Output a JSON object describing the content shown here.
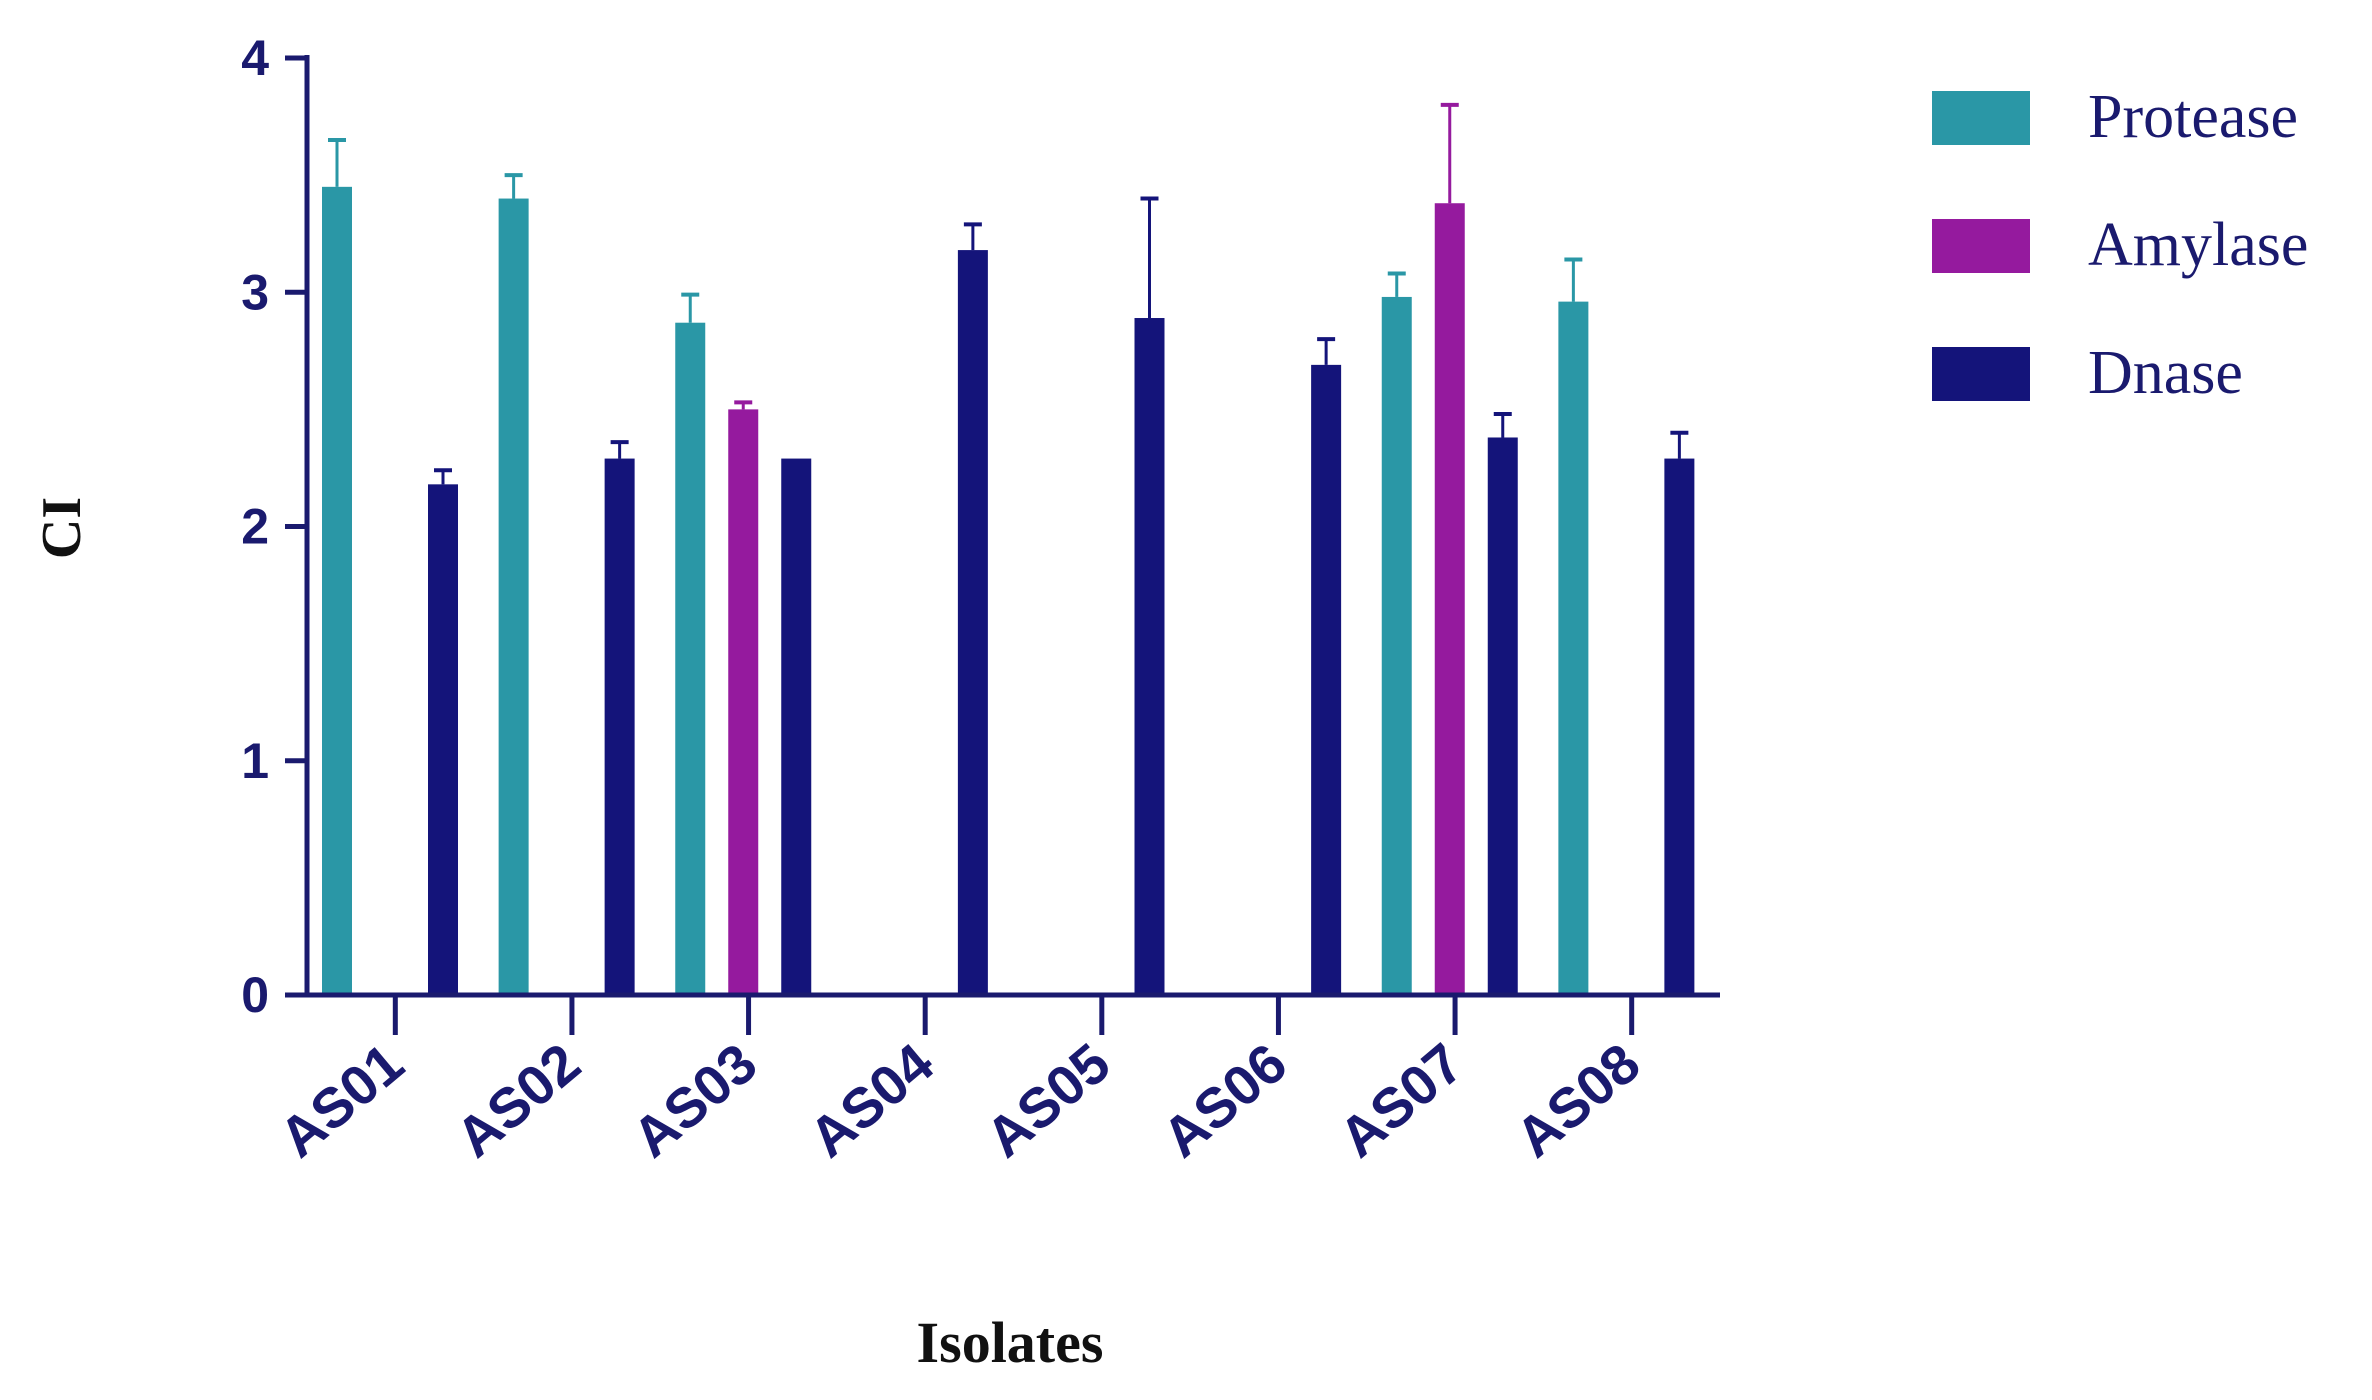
{
  "chart_data": {
    "type": "bar",
    "title": "",
    "xlabel": "Isolates",
    "ylabel": "CI",
    "ylim": [
      0,
      4
    ],
    "yticks": [
      0,
      1,
      2,
      3,
      4
    ],
    "grid": false,
    "legend_position": "top-right",
    "categories": [
      "AS01",
      "AS02",
      "AS03",
      "AS04",
      "AS05",
      "AS06",
      "AS07",
      "AS08"
    ],
    "series": [
      {
        "name": "Protease",
        "color": "#2a97a6",
        "values": [
          3.45,
          3.4,
          2.87,
          0,
          0,
          0,
          2.98,
          2.96
        ],
        "errors": [
          0.2,
          0.1,
          0.12,
          0,
          0,
          0,
          0.1,
          0.18
        ]
      },
      {
        "name": "Amylase",
        "color": "#951a9e",
        "values": [
          0,
          0,
          2.5,
          0,
          0,
          0,
          3.38,
          0
        ],
        "errors": [
          0,
          0,
          0.03,
          0,
          0,
          0,
          0.42,
          0
        ]
      },
      {
        "name": "Dnase",
        "color": "#14147a",
        "values": [
          2.18,
          2.29,
          2.29,
          3.18,
          2.89,
          2.69,
          2.38,
          2.29
        ],
        "errors": [
          0.06,
          0.07,
          0,
          0.11,
          0.51,
          0.11,
          0.1,
          0.11
        ]
      }
    ]
  }
}
